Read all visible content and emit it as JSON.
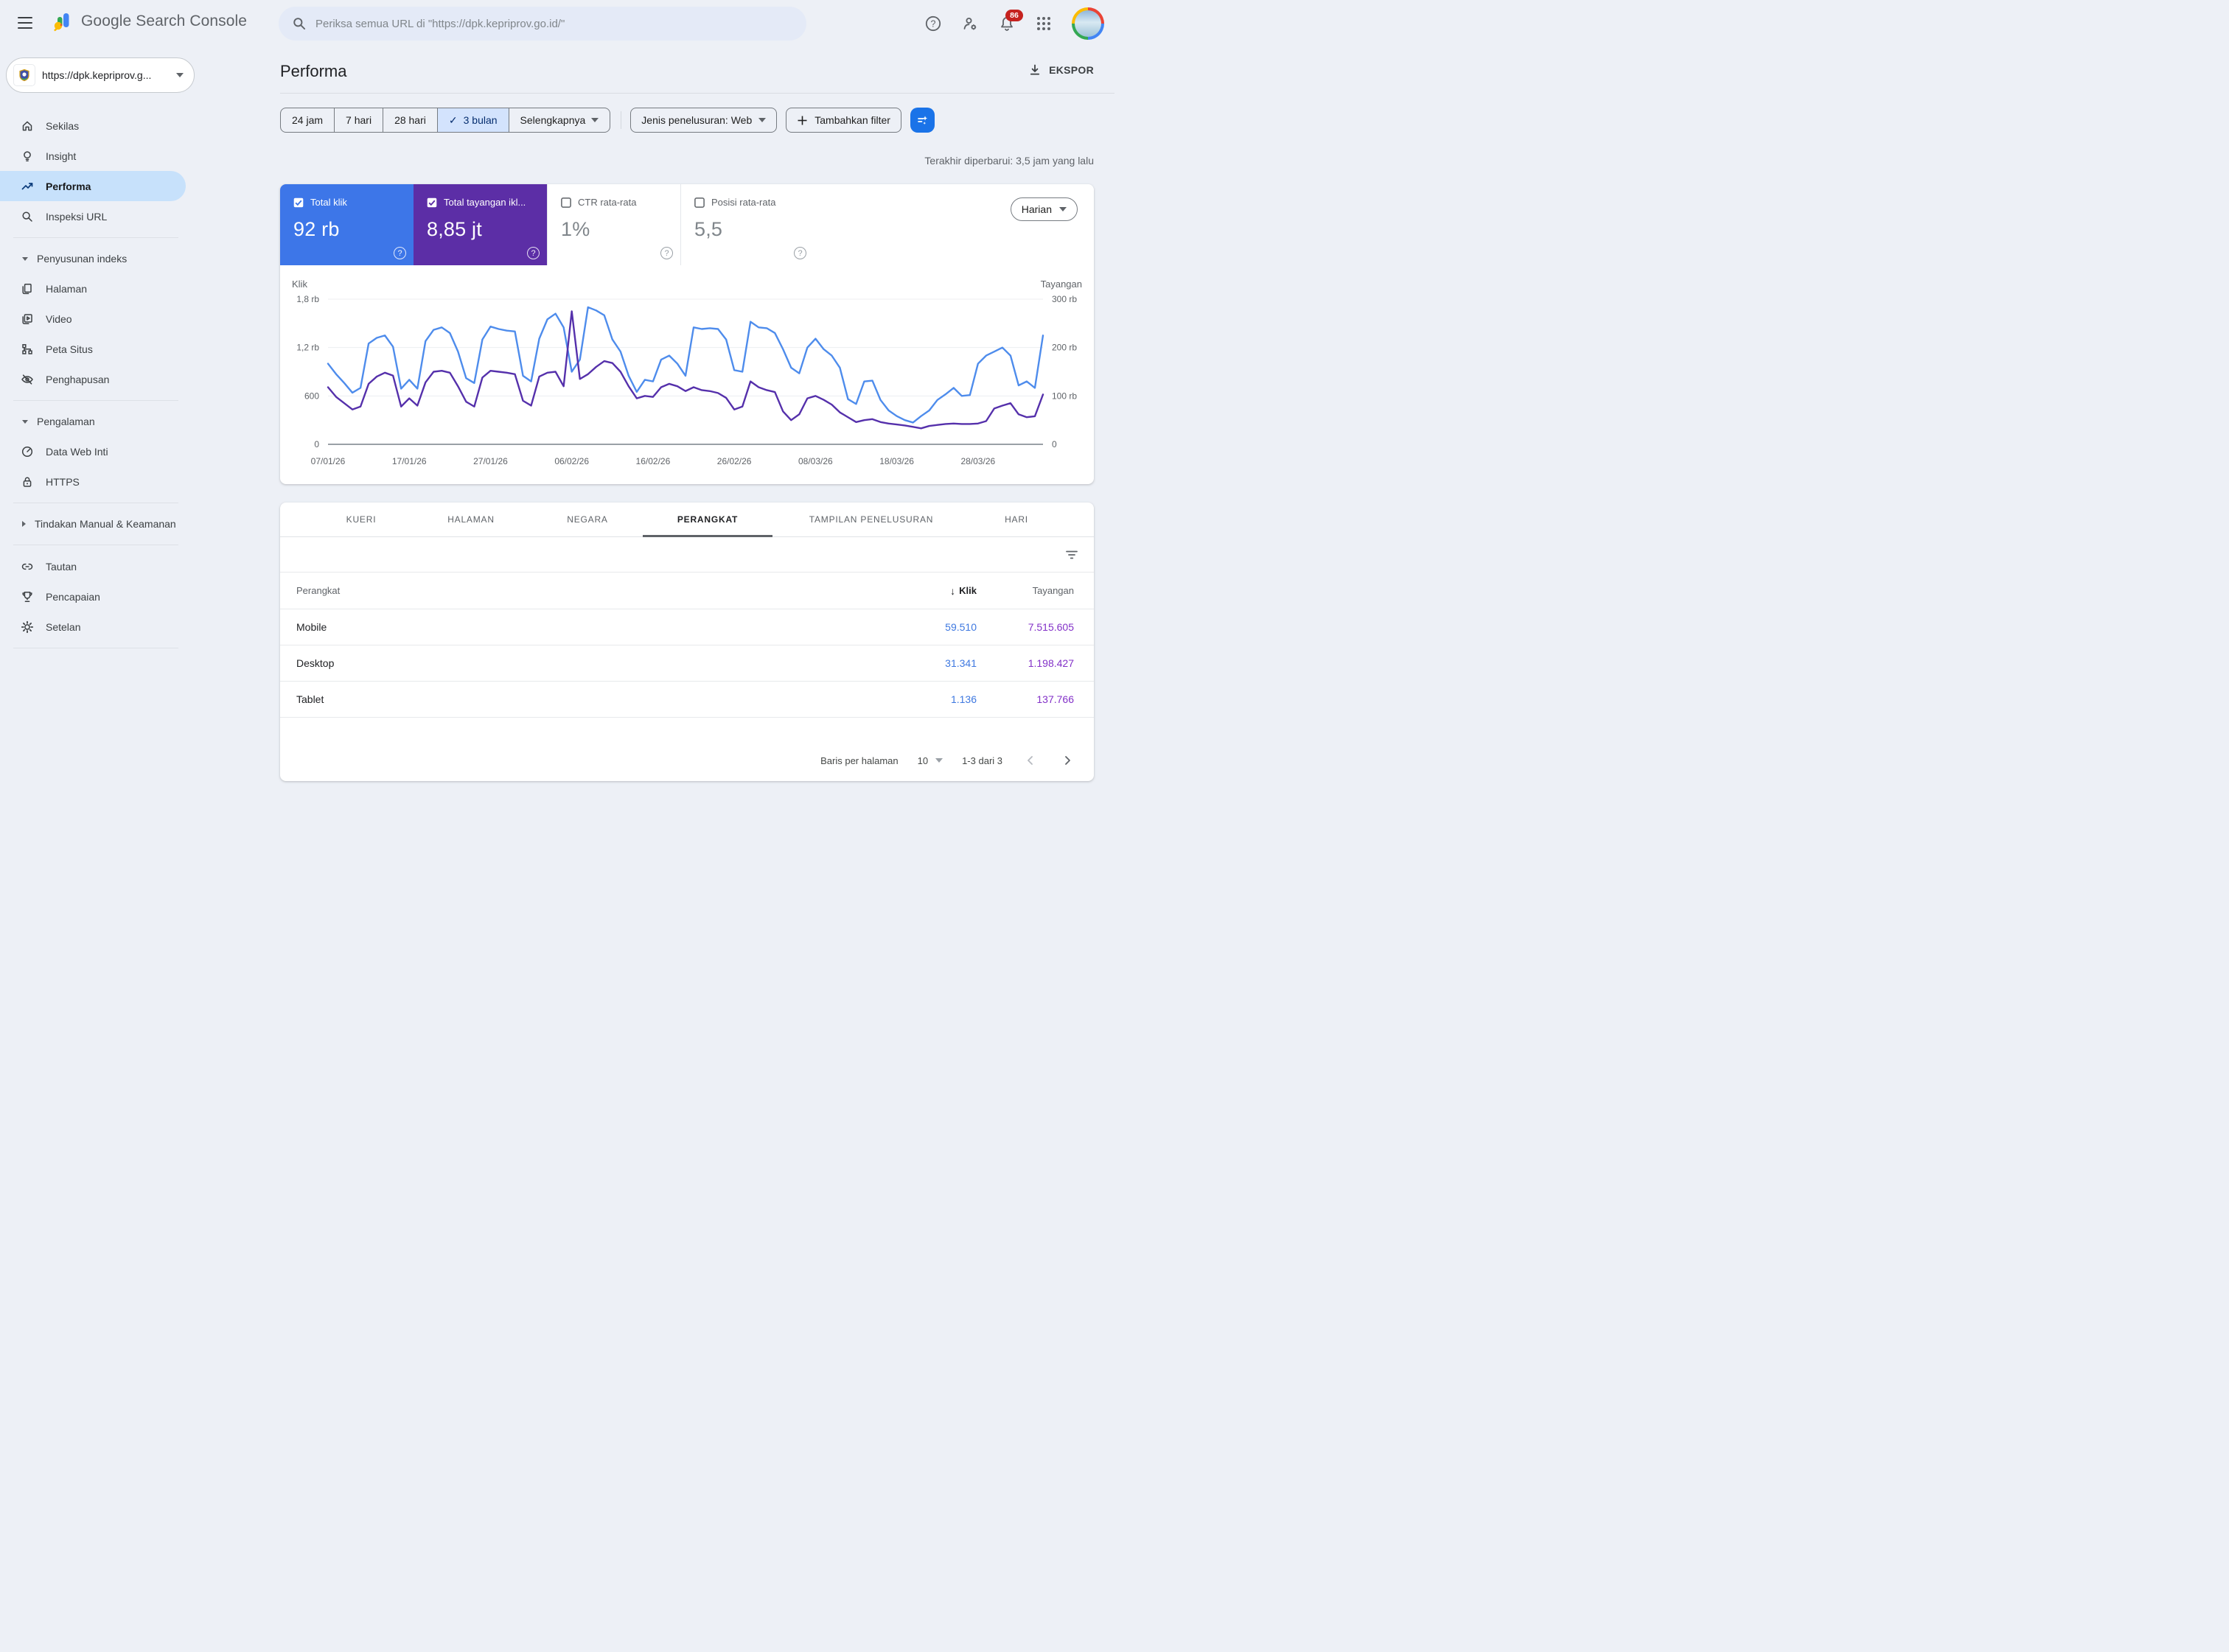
{
  "topbar": {
    "product": "Google Search Console",
    "search_placeholder": "Periksa semua URL di \"https://dpk.kepriprov.go.id/\"",
    "notifications": "86"
  },
  "sidebar": {
    "property": "https://dpk.kepriprov.g...",
    "primary": [
      {
        "label": "Sekilas"
      },
      {
        "label": "Insight"
      },
      {
        "label": "Performa",
        "active": true
      },
      {
        "label": "Inspeksi URL"
      }
    ],
    "indexing": {
      "header": "Penyusunan indeks",
      "items": [
        {
          "label": "Halaman"
        },
        {
          "label": "Video"
        },
        {
          "label": "Peta Situs"
        },
        {
          "label": "Penghapusan"
        }
      ]
    },
    "experience": {
      "header": "Pengalaman",
      "items": [
        {
          "label": "Data Web Inti"
        },
        {
          "label": "HTTPS"
        }
      ]
    },
    "manual_actions": {
      "label": "Tindakan Manual & Keamanan"
    },
    "bottom": [
      {
        "label": "Tautan"
      },
      {
        "label": "Pencapaian"
      },
      {
        "label": "Setelan"
      }
    ]
  },
  "page": {
    "title": "Performa",
    "export_label": "EKSPOR",
    "last_updated": "Terakhir diperbarui: 3,5 jam yang lalu"
  },
  "filters": {
    "ranges": [
      "24 jam",
      "7 hari",
      "28 hari",
      "3 bulan",
      "Selengkapnya"
    ],
    "selected_range": "3 bulan",
    "search_type": "Jenis penelusuran: Web",
    "add_filter_label": "Tambahkan filter"
  },
  "metrics": {
    "cards": [
      {
        "label": "Total klik",
        "value": "92 rb",
        "checked": true,
        "color": "#3d76e8"
      },
      {
        "label": "Total tayangan ikl...",
        "value": "8,85 jt",
        "checked": true,
        "color": "#5c2ea6"
      },
      {
        "label": "CTR rata-rata",
        "value": "1%",
        "checked": false
      },
      {
        "label": "Posisi rata-rata",
        "value": "5,5",
        "checked": false
      }
    ],
    "granularity": "Harian"
  },
  "chart_data": {
    "type": "line",
    "left_axis_label": "Klik",
    "right_axis_label": "Tayangan",
    "y_left_max": 1800,
    "y_right_max": 300,
    "y_ticks_left": [
      {
        "v": 0,
        "label": "0"
      },
      {
        "v": 600,
        "label": "600"
      },
      {
        "v": 1200,
        "label": "1,2 rb"
      },
      {
        "v": 1800,
        "label": "1,8 rb"
      }
    ],
    "y_ticks_right": [
      {
        "v": 0,
        "label": "0"
      },
      {
        "v": 100,
        "label": "100 rb"
      },
      {
        "v": 200,
        "label": "200 rb"
      },
      {
        "v": 300,
        "label": "300 rb"
      }
    ],
    "x_tick_every": 10,
    "dates": [
      "07/01/26",
      "08/01/26",
      "09/01/26",
      "10/01/26",
      "11/01/26",
      "12/01/26",
      "13/01/26",
      "14/01/26",
      "15/01/26",
      "16/01/26",
      "17/01/26",
      "18/01/26",
      "19/01/26",
      "20/01/26",
      "21/01/26",
      "22/01/26",
      "23/01/26",
      "24/01/26",
      "25/01/26",
      "26/01/26",
      "27/01/26",
      "28/01/26",
      "29/01/26",
      "30/01/26",
      "31/01/26",
      "01/02/26",
      "02/02/26",
      "03/02/26",
      "04/02/26",
      "05/02/26",
      "06/02/26",
      "07/02/26",
      "08/02/26",
      "09/02/26",
      "10/02/26",
      "11/02/26",
      "12/02/26",
      "13/02/26",
      "14/02/26",
      "15/02/26",
      "16/02/26",
      "17/02/26",
      "18/02/26",
      "19/02/26",
      "20/02/26",
      "21/02/26",
      "22/02/26",
      "23/02/26",
      "24/02/26",
      "25/02/26",
      "26/02/26",
      "27/02/26",
      "28/02/26",
      "01/03/26",
      "02/03/26",
      "03/03/26",
      "04/03/26",
      "05/03/26",
      "06/03/26",
      "07/03/26",
      "08/03/26",
      "09/03/26",
      "10/03/26",
      "11/03/26",
      "12/03/26",
      "13/03/26",
      "14/03/26",
      "15/03/26",
      "16/03/26",
      "17/03/26",
      "18/03/26",
      "19/03/26",
      "20/03/26",
      "21/03/26",
      "22/03/26",
      "23/03/26",
      "24/03/26",
      "25/03/26",
      "26/03/26",
      "27/03/26",
      "28/03/26",
      "29/03/26",
      "30/03/26",
      "31/03/26",
      "01/04/26",
      "02/04/26",
      "03/04/26",
      "04/04/26",
      "05/04/26"
    ],
    "series": [
      {
        "name": "Total klik",
        "axis": "left",
        "color": "#4e8cec",
        "values": [
          1000,
          870,
          760,
          640,
          700,
          1250,
          1320,
          1350,
          1210,
          690,
          800,
          690,
          1280,
          1420,
          1450,
          1380,
          1150,
          820,
          760,
          1300,
          1460,
          1430,
          1410,
          1400,
          850,
          780,
          1310,
          1550,
          1620,
          1450,
          900,
          1050,
          1700,
          1660,
          1600,
          1300,
          1150,
          850,
          650,
          800,
          780,
          1050,
          1100,
          1000,
          850,
          1450,
          1430,
          1440,
          1430,
          1300,
          920,
          900,
          1520,
          1450,
          1440,
          1380,
          1180,
          950,
          880,
          1200,
          1310,
          1180,
          1100,
          950,
          560,
          500,
          780,
          790,
          550,
          420,
          350,
          300,
          270,
          350,
          420,
          550,
          620,
          700,
          600,
          610,
          1000,
          1100,
          1150,
          1200,
          1100,
          730,
          780,
          700,
          1350
        ]
      },
      {
        "name": "Total tayangan",
        "axis": "right",
        "unit": "rb",
        "color": "#5530ab",
        "values": [
          118,
          98,
          85,
          72,
          78,
          125,
          140,
          148,
          142,
          78,
          95,
          80,
          128,
          150,
          152,
          148,
          120,
          88,
          78,
          138,
          152,
          150,
          148,
          145,
          90,
          80,
          140,
          148,
          150,
          120,
          275,
          135,
          145,
          160,
          172,
          168,
          150,
          120,
          95,
          100,
          98,
          118,
          125,
          120,
          110,
          118,
          112,
          110,
          106,
          96,
          72,
          78,
          130,
          118,
          112,
          108,
          68,
          50,
          62,
          95,
          100,
          92,
          82,
          66,
          56,
          46,
          50,
          52,
          46,
          43,
          41,
          39,
          36,
          33,
          38,
          40,
          42,
          43,
          42,
          42,
          43,
          48,
          74,
          80,
          85,
          62,
          56,
          58,
          103
        ]
      }
    ]
  },
  "table": {
    "tabs": [
      "KUERI",
      "HALAMAN",
      "NEGARA",
      "PERANGKAT",
      "TAMPILAN PENELUSURAN",
      "HARI"
    ],
    "active_tab": "PERANGKAT",
    "columns": {
      "device": "Perangkat",
      "clicks": "Klik",
      "impressions": "Tayangan"
    },
    "rows": [
      {
        "device": "Mobile",
        "clicks": "59.510",
        "impressions": "7.515.605"
      },
      {
        "device": "Desktop",
        "clicks": "31.341",
        "impressions": "1.198.427"
      },
      {
        "device": "Tablet",
        "clicks": "1.136",
        "impressions": "137.766"
      }
    ],
    "pagination": {
      "rows_per_page_label": "Baris per halaman",
      "rows_per_page": "10",
      "range": "1-3 dari 3"
    }
  }
}
